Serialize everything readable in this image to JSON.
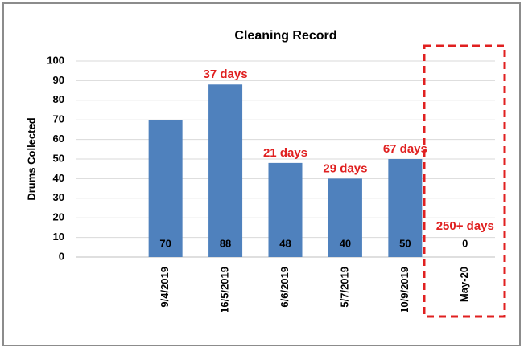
{
  "chart_data": {
    "type": "bar",
    "title": "Cleaning Record",
    "ylabel": "Drums Collected",
    "categories": [
      null,
      "9/4/2019",
      "16/5/2019",
      "6/6/2019",
      "5/7/2019",
      "10/9/2019",
      "May-20"
    ],
    "values": [
      null,
      70,
      88,
      48,
      40,
      50,
      0
    ],
    "gap_labels": [
      null,
      null,
      "37 days",
      "21 days",
      "29 days",
      "67 days",
      "250+ days"
    ],
    "color": "#4f81bd",
    "gap_label_color": "#e02020",
    "ylim": [
      0,
      100
    ],
    "yticks": [
      0,
      10,
      20,
      30,
      40,
      50,
      60,
      70,
      80,
      90,
      100
    ],
    "grid": true
  }
}
